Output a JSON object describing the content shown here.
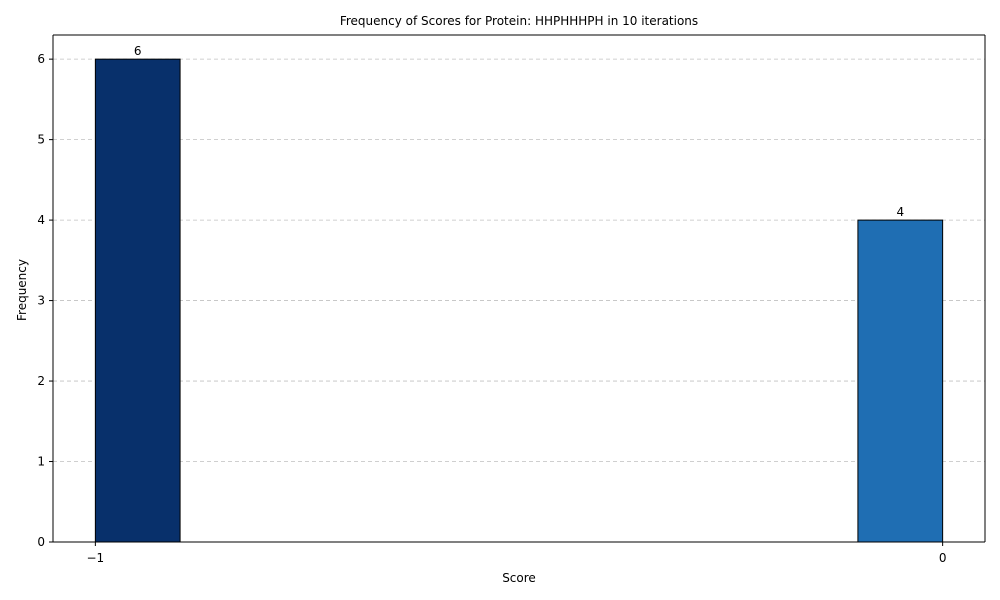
{
  "chart_data": {
    "type": "bar",
    "title": "Frequency of Scores for Protein: HHPHHHPH in 10 iterations",
    "xlabel": "Score",
    "ylabel": "Frequency",
    "bins": [
      {
        "x_start": -1.0,
        "x_end": -0.9,
        "value": 6,
        "color": "#08306b"
      },
      {
        "x_start": -0.1,
        "x_end": 0.0,
        "value": 4,
        "color": "#1f6eb3"
      }
    ],
    "xticks": [
      -1,
      0
    ],
    "xtick_labels": [
      "−1",
      "0"
    ],
    "yticks": [
      0,
      1,
      2,
      3,
      4,
      5,
      6
    ],
    "xlim": [
      -1.05,
      0.05
    ],
    "ylim": [
      0,
      6.3
    ],
    "grid": {
      "axis": "y",
      "style": "dashed",
      "color": "#c0c0c0"
    },
    "bar_edge_color": "#000000",
    "data_labels": [
      "6",
      "4"
    ]
  }
}
